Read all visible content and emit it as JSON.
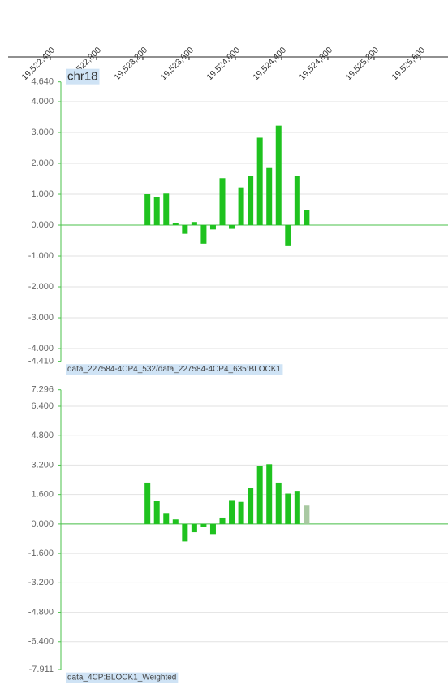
{
  "chart_data": [
    {
      "type": "bar",
      "title": "chr18",
      "label": "data_227584-4CP4_532/data_227584-4CP4_635:BLOCK1",
      "color": "#1fc21f",
      "xlim": [
        19521965,
        19525839
      ],
      "xticks": [
        {
          "value": 19522400,
          "label": "19,522,400"
        },
        {
          "value": 19522800,
          "label": "19,522,800"
        },
        {
          "value": 19523200,
          "label": "19,523,200"
        },
        {
          "value": 19523600,
          "label": "19,523,600"
        },
        {
          "value": 19524000,
          "label": "19,524,000"
        },
        {
          "value": 19524400,
          "label": "19,524,400"
        },
        {
          "value": 19524800,
          "label": "19,524,800"
        },
        {
          "value": 19525200,
          "label": "19,525,200"
        },
        {
          "value": 19525600,
          "label": "19,525,600"
        }
      ],
      "x": [
        19523240,
        19523321,
        19523402,
        19523483,
        19523564,
        19523645,
        19523726,
        19523807,
        19523888,
        19523969,
        19524050,
        19524131,
        19524212,
        19524293,
        19524374,
        19524455,
        19524536,
        19524617
      ],
      "values": [
        1.0,
        0.9,
        1.02,
        0.07,
        -0.28,
        0.1,
        -0.6,
        -0.14,
        1.52,
        -0.12,
        1.22,
        1.6,
        2.83,
        1.85,
        3.22,
        -0.68,
        1.6,
        0.48
      ],
      "ylim": [
        -4.41,
        4.64
      ],
      "yticks": [
        {
          "value": 4.64,
          "label": "4.640"
        },
        {
          "value": 4,
          "label": "4.000"
        },
        {
          "value": 3,
          "label": "3.000"
        },
        {
          "value": 2,
          "label": "2.000"
        },
        {
          "value": 1,
          "label": "1.000"
        },
        {
          "value": 0,
          "label": "0.000"
        },
        {
          "value": -1,
          "label": "-1.000"
        },
        {
          "value": -2,
          "label": "-2.000"
        },
        {
          "value": -3,
          "label": "-3.000"
        },
        {
          "value": -4,
          "label": "-4.000"
        },
        {
          "value": -4.41,
          "label": "-4.410"
        }
      ],
      "grid": true
    },
    {
      "type": "bar",
      "label": "data_4CP:BLOCK1_Weighted",
      "color": "#1fc21f",
      "colors": [
        "#1fc21f",
        "#1fc21f",
        "#1fc21f",
        "#1fc21f",
        "#1fc21f",
        "#1fc21f",
        "#1fc21f",
        "#1fc21f",
        "#1fc21f",
        "#1fc21f",
        "#1fc21f",
        "#1fc21f",
        "#1fc21f",
        "#1fc21f",
        "#1fc21f",
        "#1fc21f",
        "#1fc21f",
        "#a9c9a2"
      ],
      "xlim": [
        19521965,
        19525839
      ],
      "x": [
        19523240,
        19523321,
        19523402,
        19523483,
        19523564,
        19523645,
        19523726,
        19523807,
        19523888,
        19523969,
        19524050,
        19524131,
        19524212,
        19524293,
        19524374,
        19524455,
        19524536,
        19524617
      ],
      "values": [
        2.25,
        1.25,
        0.6,
        0.25,
        -0.95,
        -0.45,
        -0.15,
        -0.55,
        0.35,
        1.3,
        1.2,
        1.95,
        3.15,
        3.25,
        2.25,
        1.65,
        1.8,
        1.0
      ],
      "ylim": [
        -7.911,
        7.296
      ],
      "yticks": [
        {
          "value": 7.296,
          "label": "7.296"
        },
        {
          "value": 6.4,
          "label": "6.400"
        },
        {
          "value": 4.8,
          "label": "4.800"
        },
        {
          "value": 3.2,
          "label": "3.200"
        },
        {
          "value": 1.6,
          "label": "1.600"
        },
        {
          "value": 0,
          "label": "0.000"
        },
        {
          "value": -1.6,
          "label": "-1.600"
        },
        {
          "value": -3.2,
          "label": "-3.200"
        },
        {
          "value": -4.8,
          "label": "-4.800"
        },
        {
          "value": -6.4,
          "label": "-6.400"
        },
        {
          "value": -7.911,
          "label": "-7.911"
        }
      ],
      "grid": true
    }
  ]
}
